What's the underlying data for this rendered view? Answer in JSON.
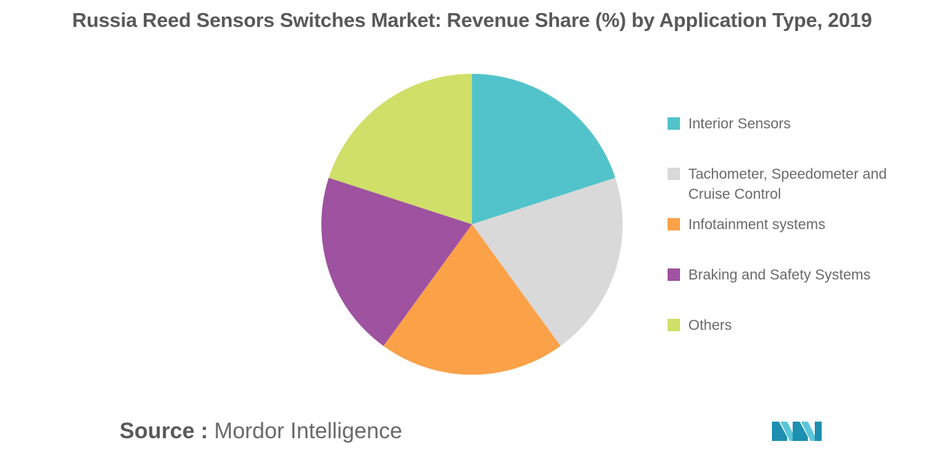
{
  "title": "Russia Reed Sensors Switches Market: Revenue Share (%) by Application Type, 2019",
  "source": {
    "label": "Source :",
    "value": "Mordor Intelligence"
  },
  "logo": {
    "icon": "mordor-intelligence-logo-icon",
    "colors": [
      "#1d8fb0",
      "#5bc6d8"
    ]
  },
  "chart_data": {
    "type": "pie",
    "title": "Russia Reed Sensors Switches Market: Revenue Share (%) by Application Type, 2019",
    "legend_position": "right",
    "labels": [
      "Interior Sensors",
      "Tachometer, Speedometer and Cruise Control",
      "Infotainment systems",
      "Braking and Safety Systems",
      "Others"
    ],
    "values": [
      20,
      20,
      20,
      20,
      20
    ],
    "colors": [
      "#52c3cb",
      "#d9d9d9",
      "#fba148",
      "#9e52a0",
      "#cfdf68"
    ]
  }
}
